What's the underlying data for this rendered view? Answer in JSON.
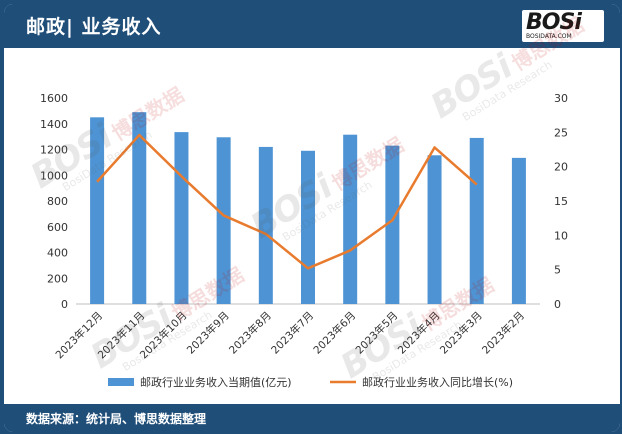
{
  "header": {
    "title": "邮政| 业务收入"
  },
  "logo": {
    "main": "BOSi",
    "sub": "BOSIDATA.COM"
  },
  "watermark": {
    "logo": "BOSi",
    "cn": "博思数据",
    "en": "BosiData Research"
  },
  "footer": {
    "source": "数据来源：统计局、博思数据整理"
  },
  "colors": {
    "bar": "#4e94d4",
    "line": "#e87b2e",
    "brand": "#1f4e79"
  },
  "chart_data": {
    "type": "bar",
    "categories": [
      "2023年12月",
      "2023年11月",
      "2023年10月",
      "2023年9月",
      "2023年8月",
      "2023年7月",
      "2023年6月",
      "2023年5月",
      "2023年4月",
      "2023年3月",
      "2023年2月"
    ],
    "series": [
      {
        "name": "邮政行业业务收入当期值(亿元)",
        "type": "bar",
        "axis": "left",
        "values": [
          1450,
          1490,
          1335,
          1295,
          1220,
          1190,
          1315,
          1230,
          1155,
          1290,
          1135
        ]
      },
      {
        "name": "邮政行业业务收入同比增长(%)",
        "type": "line",
        "axis": "right",
        "values": [
          17.8,
          24.6,
          18.6,
          12.9,
          10.2,
          5.2,
          7.8,
          12.2,
          22.8,
          17.4,
          null
        ]
      }
    ],
    "ylim_left": [
      0,
      1600
    ],
    "yticks_left": [
      "0",
      "200",
      "400",
      "600",
      "800",
      "1000",
      "1200",
      "1400",
      "1600"
    ],
    "ylim_right": [
      0,
      30
    ],
    "yticks_right": [
      "0",
      "5",
      "10",
      "15",
      "20",
      "25",
      "30"
    ],
    "grid": false,
    "legend": "bottom"
  }
}
